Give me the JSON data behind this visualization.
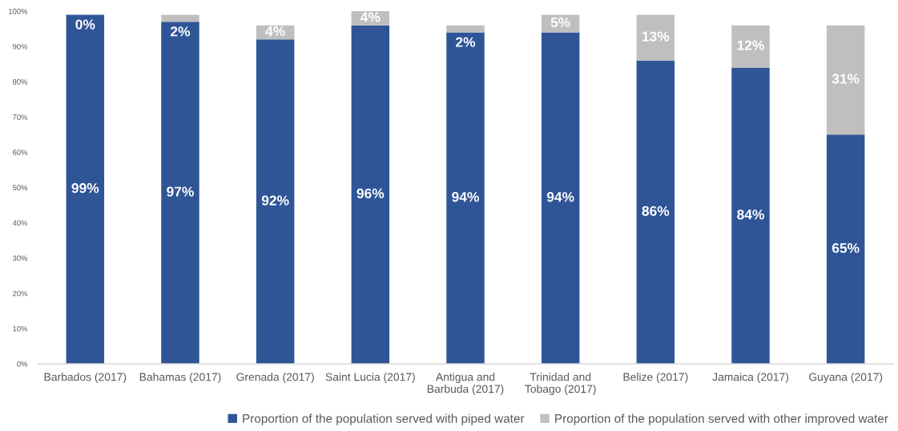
{
  "chart_data": {
    "type": "bar",
    "stacked": true,
    "categories": [
      "Barbados (2017)",
      "Bahamas (2017)",
      "Grenada (2017)",
      "Saint Lucia (2017)",
      "Antigua and\nBarbuda (2017)",
      "Trinidad and\nTobago (2017)",
      "Belize (2017)",
      "Jamaica (2017)",
      "Guyana (2017)"
    ],
    "series": [
      {
        "name": "Proportion of the population served with piped water",
        "color": "#2f5597",
        "values": [
          99,
          97,
          92,
          96,
          94,
          94,
          86,
          84,
          65
        ],
        "value_labels": [
          "99%",
          "97%",
          "92%",
          "96%",
          "94%",
          "94%",
          "86%",
          "84%",
          "65%"
        ]
      },
      {
        "name": "Proportion of the population served with other improved water",
        "color": "#bfbfbf",
        "values": [
          0,
          2,
          4,
          4,
          2,
          5,
          13,
          12,
          31
        ],
        "value_labels": [
          "0%",
          "2%",
          "4%",
          "4%",
          "2%",
          "5%",
          "13%",
          "12%",
          "31%"
        ]
      }
    ],
    "ylim": [
      0,
      100
    ],
    "yticks": [
      {
        "value": 0,
        "label": "0%"
      },
      {
        "value": 10,
        "label": "10%"
      },
      {
        "value": 20,
        "label": "20%"
      },
      {
        "value": 30,
        "label": "30%"
      },
      {
        "value": 40,
        "label": "40%"
      },
      {
        "value": 50,
        "label": "50%"
      },
      {
        "value": 60,
        "label": "60%"
      },
      {
        "value": 70,
        "label": "70%"
      },
      {
        "value": 80,
        "label": "80%"
      },
      {
        "value": 90,
        "label": "90%"
      },
      {
        "value": 100,
        "label": "100%"
      }
    ],
    "legend": "bottom"
  }
}
